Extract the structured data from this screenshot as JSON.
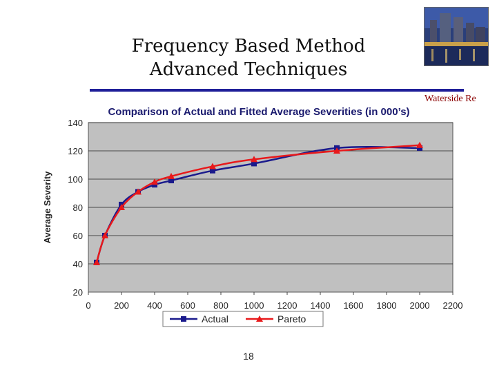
{
  "slide": {
    "title_line1": "Frequency Based Method",
    "title_line2": "Advanced Techniques",
    "brand": "Waterside Re",
    "page_number": "18"
  },
  "colors": {
    "actual": "#1a1a8c",
    "pareto": "#e8191b",
    "plot_bg": "#c0c0c0",
    "rule": "#1f1f99"
  },
  "chart_data": {
    "type": "line",
    "title": "Comparison of Actual and Fitted Average Severities (in 000’s)",
    "xlabel": "",
    "ylabel": "Average Severity",
    "xlim": [
      0,
      2200
    ],
    "ylim": [
      20,
      140
    ],
    "x_ticks": [
      "0",
      "200",
      "400",
      "600",
      "800",
      "1000",
      "1200",
      "1400",
      "1600",
      "1800",
      "2000",
      "2200"
    ],
    "y_ticks": [
      "20",
      "40",
      "60",
      "80",
      "100",
      "120",
      "140"
    ],
    "grid": "horizontal",
    "legend": "bottom",
    "series": [
      {
        "name": "Actual",
        "marker": "square",
        "points": [
          [
            50,
            41
          ],
          [
            100,
            60
          ],
          [
            200,
            82
          ],
          [
            300,
            91
          ],
          [
            400,
            96
          ],
          [
            500,
            99
          ],
          [
            750,
            106
          ],
          [
            1000,
            111
          ],
          [
            1500,
            122
          ],
          [
            2000,
            122
          ]
        ]
      },
      {
        "name": "Pareto",
        "marker": "triangle",
        "points": [
          [
            50,
            41
          ],
          [
            100,
            60
          ],
          [
            200,
            80
          ],
          [
            300,
            91
          ],
          [
            400,
            98
          ],
          [
            500,
            102
          ],
          [
            750,
            109
          ],
          [
            1000,
            114
          ],
          [
            1500,
            120
          ],
          [
            2000,
            124
          ]
        ]
      }
    ]
  }
}
